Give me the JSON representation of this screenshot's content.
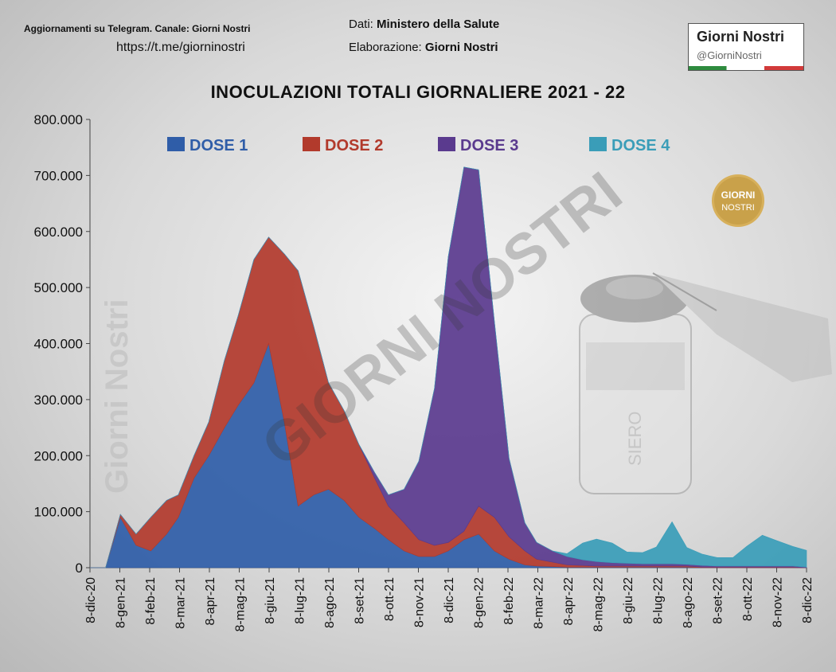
{
  "header": {
    "telegram_label": "Aggiornamenti su Telegram. Canale:  Giorni Nostri",
    "telegram_url": "https://t.me/giorninostri",
    "data_label": "Dati:",
    "data_source": "Ministero della Salute",
    "elab_label": "Elaborazione:",
    "elab_by": "Giorni Nostri"
  },
  "logo": {
    "title": "Giorni Nostri",
    "handle": "@GiorniNostri"
  },
  "badge": {
    "line1": "GIORNI",
    "line2": "NOSTRI"
  },
  "watermarks": {
    "vertical": "Giorni Nostri",
    "diagonal": "GIORNI NOSTRI",
    "vial": "SIERO"
  },
  "chart_data": {
    "type": "area",
    "title": "INOCULAZIONI  TOTALI  GIORNALIERE  2021 - 22",
    "stacked": true,
    "ylim": [
      0,
      800000
    ],
    "y_ticks": [
      0,
      100000,
      200000,
      300000,
      400000,
      500000,
      600000,
      700000,
      800000
    ],
    "y_tick_labels": [
      "0",
      "100.000",
      "200.000",
      "300.000",
      "400.000",
      "500.000",
      "600.000",
      "700.000",
      "800.000"
    ],
    "x_tick_labels": [
      "8-dic-20",
      "8-gen-21",
      "8-feb-21",
      "8-mar-21",
      "8-apr-21",
      "8-mag-21",
      "8-giu-21",
      "8-lug-21",
      "8-ago-21",
      "8-set-21",
      "8-ott-21",
      "8-nov-21",
      "8-dic-21",
      "8-gen-22",
      "8-feb-22",
      "8-mar-22",
      "8-apr-22",
      "8-mag-22",
      "8-giu-22",
      "8-lug-22",
      "8-ago-22",
      "8-set-22",
      "8-ott-22",
      "8-nov-22",
      "8-dic-22"
    ],
    "legend_position": "top",
    "x": [
      "2020-12-08",
      "2020-12-24",
      "2021-01-08",
      "2021-01-24",
      "2021-02-08",
      "2021-02-24",
      "2021-03-08",
      "2021-03-24",
      "2021-04-08",
      "2021-04-24",
      "2021-05-08",
      "2021-05-24",
      "2021-06-08",
      "2021-06-24",
      "2021-07-08",
      "2021-07-24",
      "2021-08-08",
      "2021-08-24",
      "2021-09-08",
      "2021-09-24",
      "2021-10-08",
      "2021-10-24",
      "2021-11-08",
      "2021-11-24",
      "2021-12-08",
      "2021-12-24",
      "2022-01-08",
      "2022-01-24",
      "2022-02-08",
      "2022-02-24",
      "2022-03-08",
      "2022-03-24",
      "2022-04-08",
      "2022-04-24",
      "2022-05-08",
      "2022-05-24",
      "2022-06-08",
      "2022-06-24",
      "2022-07-08",
      "2022-07-24",
      "2022-08-08",
      "2022-08-24",
      "2022-09-08",
      "2022-09-24",
      "2022-10-08",
      "2022-10-24",
      "2022-11-08",
      "2022-11-24",
      "2022-12-08"
    ],
    "series": [
      {
        "name": "DOSE 1",
        "color": "#2f5da8",
        "values": [
          0,
          0,
          90000,
          40000,
          30000,
          60000,
          90000,
          160000,
          200000,
          250000,
          290000,
          330000,
          400000,
          260000,
          110000,
          130000,
          140000,
          120000,
          90000,
          70000,
          50000,
          30000,
          20000,
          20000,
          30000,
          50000,
          60000,
          30000,
          15000,
          5000,
          3000,
          2000,
          1000,
          1000,
          1000,
          1000,
          1000,
          1000,
          1000,
          1000,
          1000,
          0,
          0,
          0,
          0,
          0,
          0,
          0,
          0
        ]
      },
      {
        "name": "DOSE 2",
        "color": "#b23a2c",
        "values": [
          0,
          0,
          5000,
          20000,
          60000,
          60000,
          40000,
          40000,
          60000,
          120000,
          160000,
          220000,
          190000,
          300000,
          420000,
          300000,
          190000,
          160000,
          130000,
          90000,
          60000,
          50000,
          30000,
          20000,
          15000,
          15000,
          50000,
          60000,
          40000,
          25000,
          12000,
          8000,
          4000,
          3000,
          2000,
          2000,
          2000,
          2000,
          2000,
          2000,
          2000,
          1000,
          1000,
          1000,
          1000,
          1000,
          1000,
          1000,
          0
        ]
      },
      {
        "name": "DOSE 3",
        "color": "#5a3a8e",
        "values": [
          0,
          0,
          0,
          0,
          0,
          0,
          0,
          0,
          0,
          0,
          0,
          0,
          0,
          0,
          0,
          0,
          0,
          0,
          0,
          10000,
          20000,
          60000,
          140000,
          280000,
          510000,
          650000,
          600000,
          350000,
          140000,
          50000,
          30000,
          20000,
          15000,
          10000,
          8000,
          6000,
          5000,
          4000,
          4000,
          4000,
          3000,
          3000,
          2000,
          2000,
          2000,
          2000,
          2000,
          2000,
          1000
        ]
      },
      {
        "name": "DOSE 4",
        "color": "#3a9db8",
        "values": [
          0,
          0,
          0,
          0,
          0,
          0,
          0,
          0,
          0,
          0,
          0,
          0,
          0,
          0,
          0,
          0,
          0,
          0,
          0,
          0,
          0,
          0,
          0,
          0,
          0,
          0,
          0,
          0,
          0,
          0,
          0,
          0,
          5000,
          30000,
          40000,
          35000,
          20000,
          20000,
          30000,
          75000,
          30000,
          20000,
          15000,
          15000,
          35000,
          55000,
          45000,
          35000,
          30000
        ]
      }
    ]
  }
}
